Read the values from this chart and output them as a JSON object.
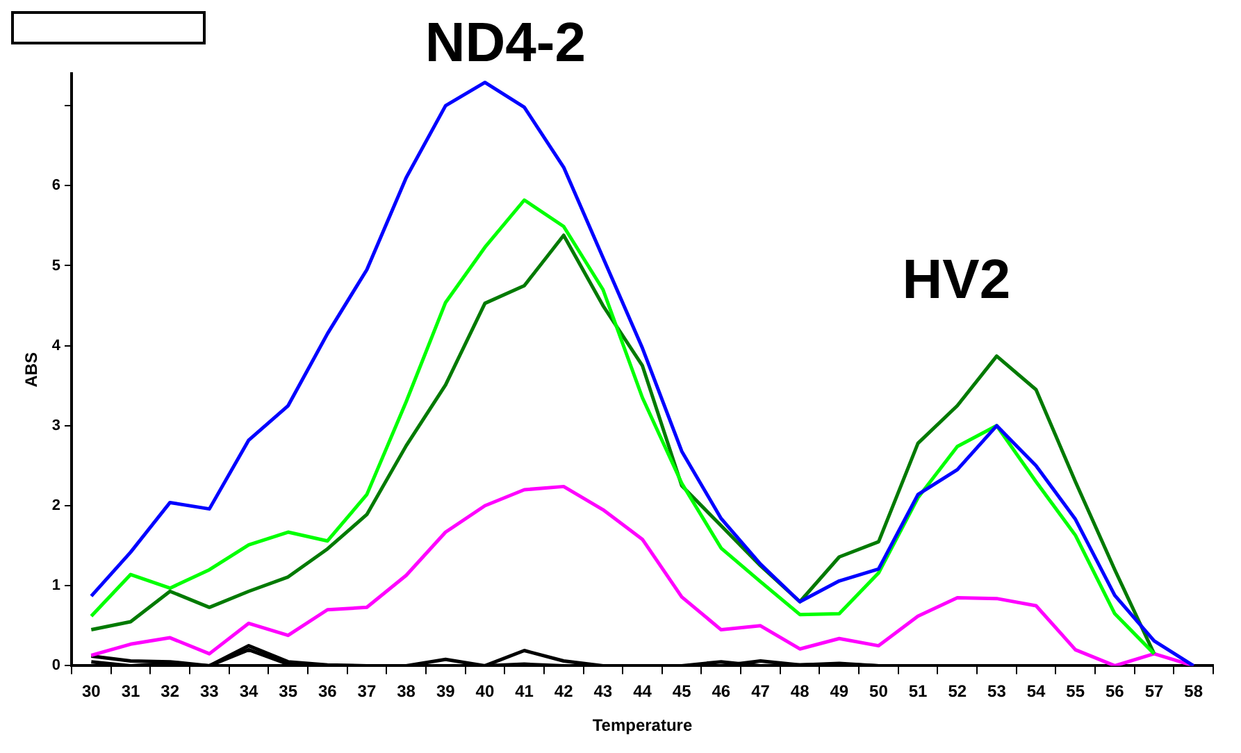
{
  "chart_data": {
    "type": "line",
    "xlabel": "Temperature",
    "ylabel": "ABS",
    "categories": [
      "30",
      "31",
      "32",
      "33",
      "34",
      "35",
      "36",
      "37",
      "38",
      "39",
      "40",
      "41",
      "42",
      "43",
      "44",
      "45",
      "46",
      "47",
      "48",
      "49",
      "50",
      "51",
      "52",
      "53",
      "54",
      "55",
      "56",
      "57",
      "58"
    ],
    "ylim": [
      0,
      7.4
    ],
    "yticks": [
      0,
      1,
      2,
      3,
      4,
      5,
      6,
      {
        "value": 7,
        "label": null
      }
    ],
    "grid": false,
    "legend": false,
    "marker": "none",
    "line_style": "solid",
    "annotations": [
      "ND4-2",
      "HV2"
    ],
    "series": [
      {
        "color": "#0000ff",
        "values": [
          0.87,
          1.42,
          2.04,
          1.96,
          2.82,
          3.25,
          4.15,
          4.95,
          6.1,
          7.0,
          7.29,
          6.98,
          6.23,
          5.1,
          3.97,
          2.68,
          1.84,
          1.27,
          0.8,
          1.06,
          1.21,
          2.14,
          2.45,
          3.0,
          2.5,
          1.83,
          0.88,
          0.31,
          0
        ]
      },
      {
        "color": "#00ff00",
        "values": [
          0.62,
          1.14,
          0.97,
          1.2,
          1.51,
          1.67,
          1.56,
          2.14,
          3.3,
          4.54,
          5.23,
          5.82,
          5.49,
          4.7,
          3.35,
          2.28,
          1.47,
          1.05,
          0.64,
          0.65,
          1.16,
          2.1,
          2.74,
          3.0,
          2.3,
          1.63,
          0.65,
          0.15,
          null
        ]
      },
      {
        "color": "#007a00",
        "values": [
          0.45,
          0.55,
          0.93,
          0.73,
          0.93,
          1.11,
          1.46,
          1.89,
          2.75,
          3.51,
          4.53,
          4.75,
          5.38,
          4.5,
          3.75,
          2.25,
          1.75,
          1.25,
          0.8,
          1.36,
          1.55,
          2.78,
          3.25,
          3.87,
          3.45,
          2.3,
          1.2,
          0.15,
          null
        ]
      },
      {
        "color": "#ff00ff",
        "values": [
          0.13,
          0.27,
          0.35,
          0.15,
          0.53,
          0.38,
          0.7,
          0.73,
          1.13,
          1.67,
          2.0,
          2.2,
          2.24,
          1.95,
          1.58,
          0.86,
          0.45,
          0.5,
          0.21,
          0.34,
          0.25,
          0.62,
          0.85,
          0.84,
          0.75,
          0.2,
          0,
          0.15,
          0
        ]
      },
      {
        "color": "#000000",
        "values": [
          0.12,
          0.06,
          0.05,
          0,
          0.25,
          0.05,
          0.01,
          0,
          0,
          0.08,
          0,
          0.19,
          0.06,
          0,
          0,
          0,
          0.05,
          0,
          0.01,
          0.02,
          0,
          0,
          0,
          0,
          0,
          0,
          0,
          0,
          0
        ]
      },
      {
        "color": "#000000",
        "values": [
          0.05,
          0,
          0.03,
          0,
          0.2,
          0.02,
          0,
          0,
          0,
          0,
          0,
          0.02,
          0,
          0,
          0,
          0,
          0,
          0.06,
          0.01,
          0.03,
          0,
          0,
          0,
          0,
          0,
          0,
          0,
          0,
          0
        ]
      }
    ]
  }
}
